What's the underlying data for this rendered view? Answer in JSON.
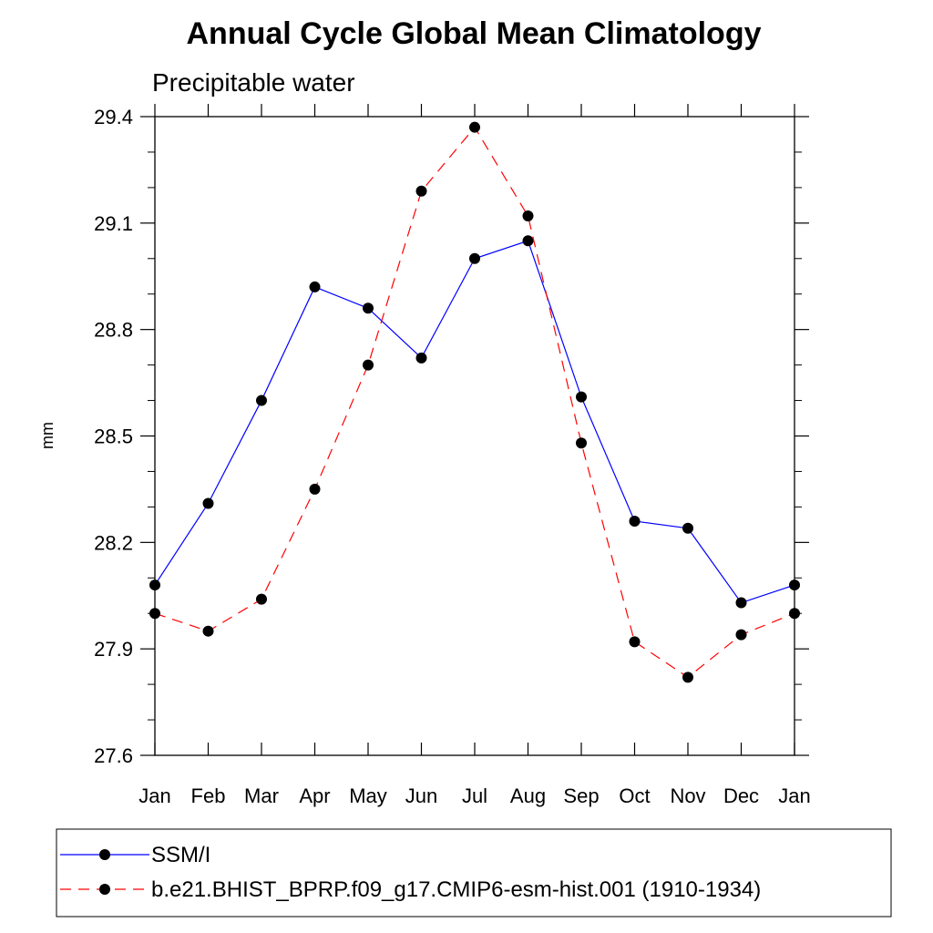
{
  "chart_data": {
    "type": "line",
    "title": "Annual Cycle Global Mean Climatology",
    "subtitle": "Precipitable water",
    "xlabel": "",
    "ylabel": "mm",
    "categories": [
      "Jan",
      "Feb",
      "Mar",
      "Apr",
      "May",
      "Jun",
      "Jul",
      "Aug",
      "Sep",
      "Oct",
      "Nov",
      "Dec",
      "Jan"
    ],
    "yticks": [
      "27.6",
      "27.9",
      "28.2",
      "28.5",
      "28.8",
      "29.1",
      "29.4"
    ],
    "ylim": [
      27.6,
      29.4
    ],
    "grid": false,
    "legend_position": "bottom",
    "series": [
      {
        "name": "SSM/I",
        "color": "#0000ff",
        "dash": "solid",
        "values": [
          28.08,
          28.31,
          28.6,
          28.92,
          28.86,
          28.72,
          29.0,
          29.05,
          28.61,
          28.26,
          28.24,
          28.03,
          28.08
        ]
      },
      {
        "name": "b.e21.BHIST_BPRP.f09_g17.CMIP6-esm-hist.001 (1910-1934)",
        "color": "#ff0000",
        "dash": "dashed",
        "values": [
          28.0,
          27.95,
          28.04,
          28.35,
          28.7,
          29.19,
          29.37,
          29.12,
          28.48,
          27.92,
          27.82,
          27.94,
          28.0
        ]
      }
    ]
  }
}
